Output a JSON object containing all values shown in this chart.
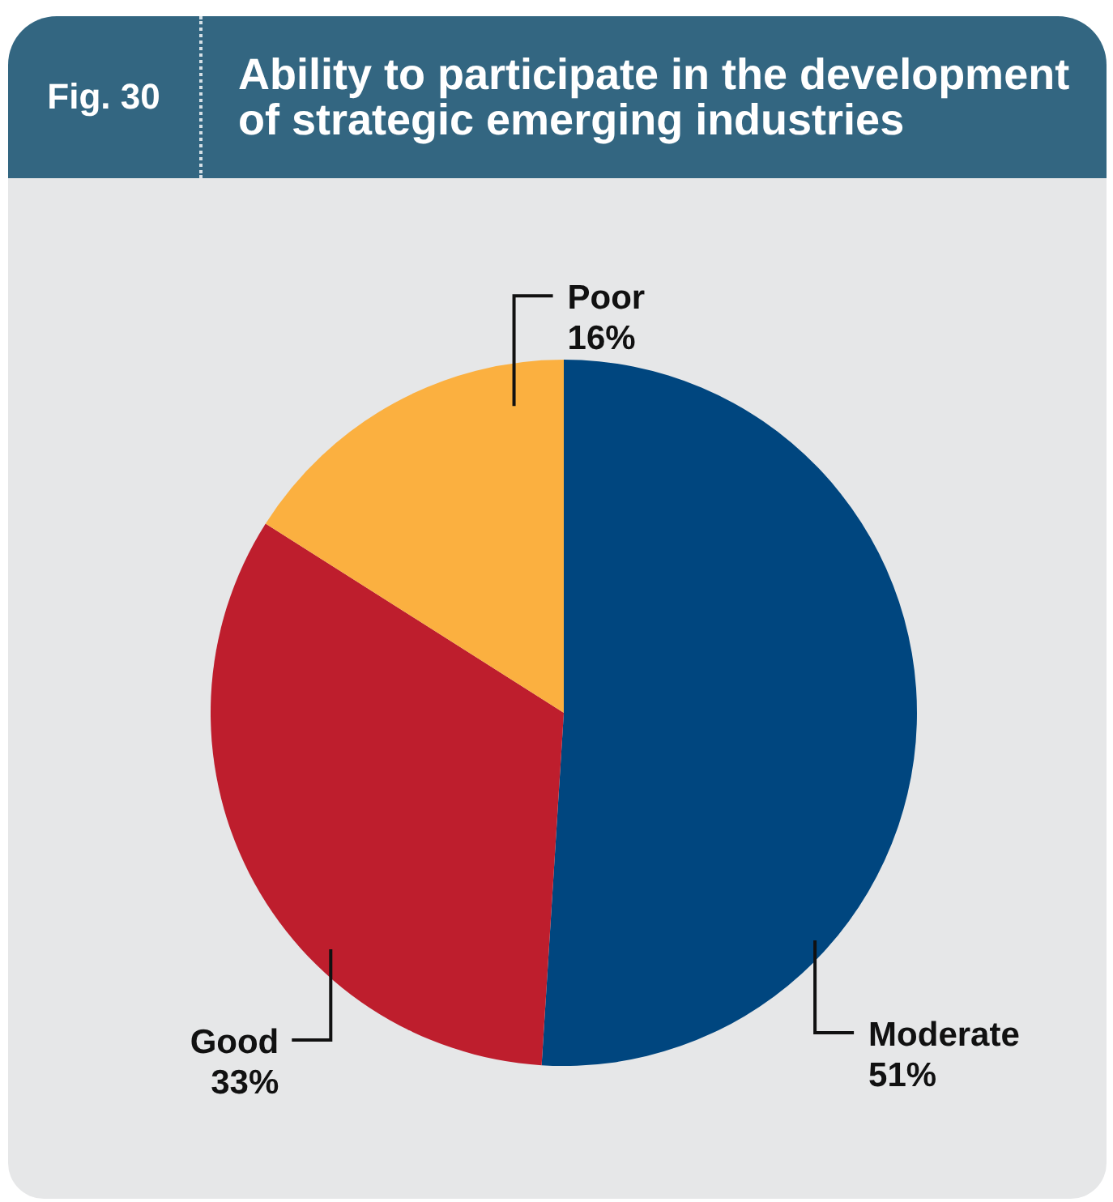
{
  "chart_data": {
    "type": "pie",
    "title": "Ability to participate in the development of strategic emerging industries",
    "annotations": [
      "Fig. 30"
    ],
    "categories": [
      "Moderate",
      "Good",
      "Poor"
    ],
    "values": [
      51,
      33,
      16
    ],
    "colors": [
      "#00467f",
      "#be1e2d",
      "#fbb040"
    ],
    "value_labels": [
      "51%",
      "33%",
      "16%"
    ]
  }
}
